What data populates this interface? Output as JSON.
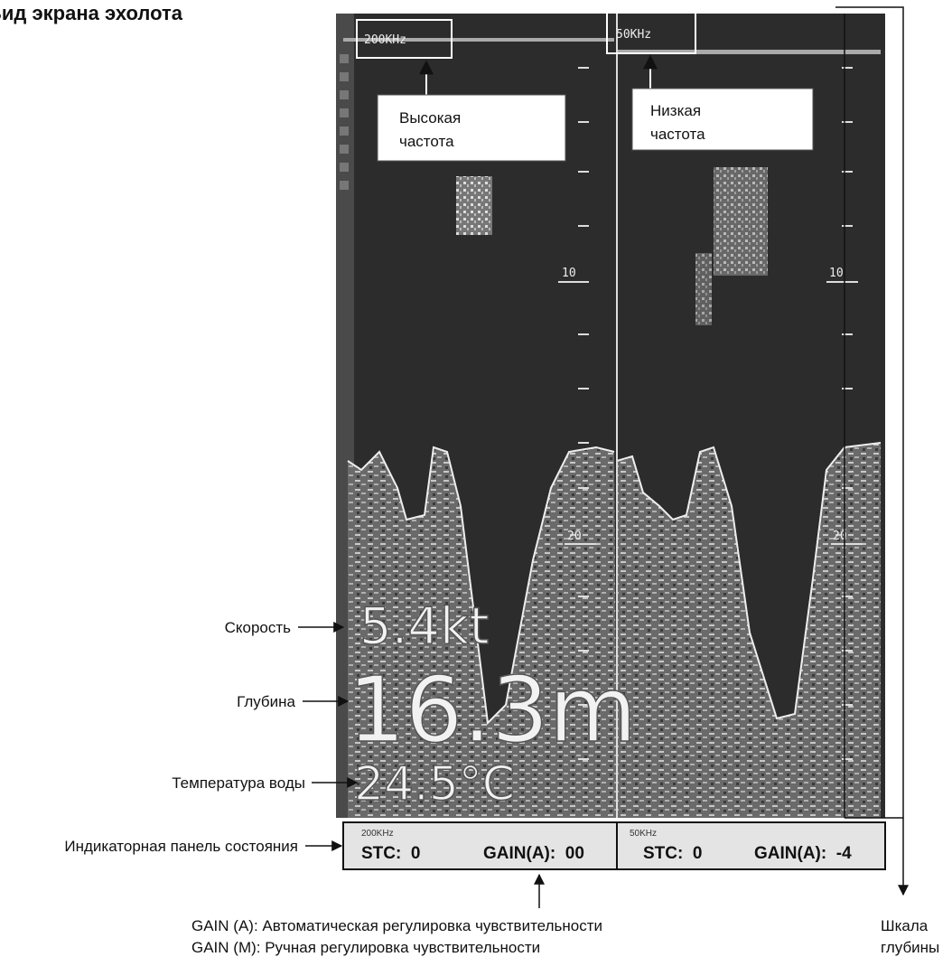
{
  "title": "Вид экрана эхолота",
  "screen": {
    "left": {
      "freq": "200KHz",
      "scale": [
        "10",
        "20"
      ]
    },
    "right": {
      "freq": "50KHz",
      "scale": [
        "10",
        "20"
      ]
    },
    "speed": "5.4kt",
    "depth": "16.3m",
    "temp": "24.5°C"
  },
  "status": {
    "left": {
      "freq": "200KHz",
      "stc": "STC:  0",
      "gain": "GAIN(A):  00"
    },
    "right": {
      "freq": "50KHz",
      "stc": "STC:  0",
      "gain": "GAIN(A):  -4"
    }
  },
  "callouts": {
    "high": [
      "Высокая",
      "частота"
    ],
    "low": [
      "Низкая",
      "частота"
    ]
  },
  "labels": {
    "speed": "Скорость",
    "depth": "Глубина",
    "temp": "Температура воды",
    "status": "Индикаторная панель состояния",
    "scale": [
      "Шкала",
      "глубины"
    ]
  },
  "notes": [
    "GAIN (A): Автоматическая регулировка чувствительности",
    "GAIN (M): Ручная регулировка чувствительности"
  ]
}
